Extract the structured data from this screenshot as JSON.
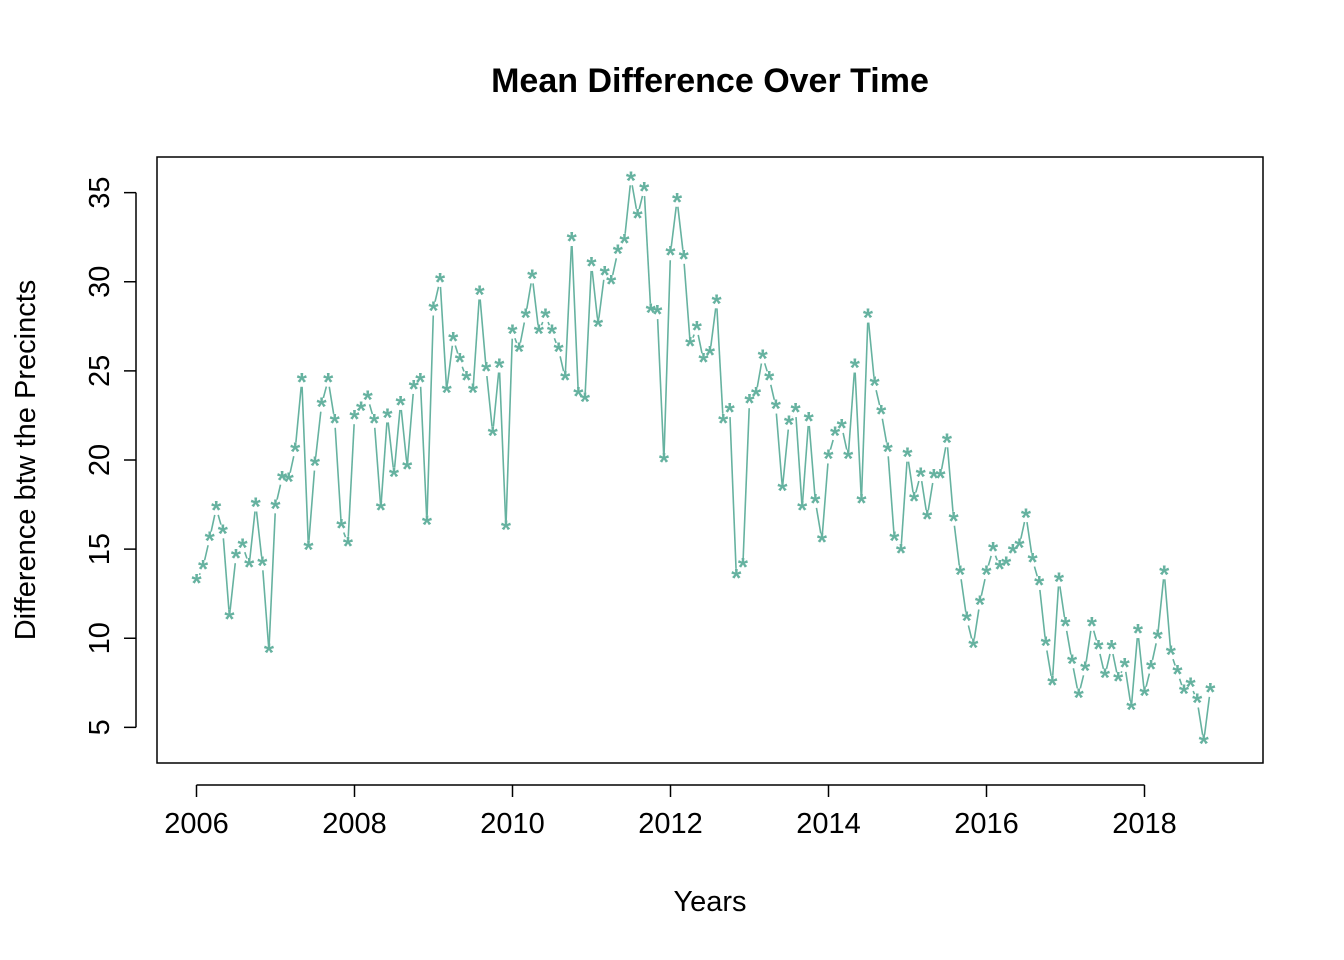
{
  "chart_data": {
    "type": "line",
    "title": "Mean Difference Over Time",
    "xlabel": "Years",
    "ylabel": "Difference btw the Precincts",
    "xlim": [
      2005.5,
      2019.5
    ],
    "ylim": [
      3,
      37
    ],
    "x_ticks": [
      2006,
      2008,
      2010,
      2012,
      2014,
      2016,
      2018
    ],
    "y_ticks": [
      5,
      10,
      15,
      20,
      25,
      30,
      35
    ],
    "x_tick_labels": [
      "2006",
      "2008",
      "2010",
      "2012",
      "2014",
      "2016",
      "2018"
    ],
    "y_tick_labels": [
      "5",
      "10",
      "15",
      "20",
      "25",
      "30",
      "35"
    ],
    "grid": false,
    "legend": "none",
    "series_color": "#66B2A0",
    "marker": "*",
    "x_start": 2006,
    "x_step": 0.08333,
    "series": [
      {
        "values": [
          13.2,
          14.0,
          15.6,
          17.3,
          16.0,
          11.2,
          14.6,
          15.2,
          14.1,
          17.5,
          14.2,
          9.3,
          17.4,
          19.0,
          18.9,
          20.6,
          24.5,
          15.1,
          19.8,
          23.1,
          24.5,
          22.2,
          16.3,
          15.3,
          22.4,
          22.9,
          23.5,
          22.2,
          17.3,
          22.5,
          19.2,
          23.2,
          19.6,
          24.1,
          24.5,
          16.5,
          28.5,
          30.1,
          23.9,
          26.8,
          25.6,
          24.6,
          23.9,
          29.4,
          25.1,
          21.5,
          25.3,
          16.2,
          27.2,
          26.2,
          28.1,
          30.3,
          27.2,
          28.1,
          27.2,
          26.2,
          24.6,
          32.4,
          23.7,
          23.4,
          31.0,
          27.6,
          30.5,
          30.0,
          31.7,
          32.3,
          35.8,
          33.7,
          35.2,
          28.4,
          28.3,
          20.0,
          31.6,
          34.6,
          31.4,
          26.5,
          27.4,
          25.6,
          26.0,
          28.9,
          22.2,
          22.8,
          13.5,
          14.1,
          23.3,
          23.7,
          25.8,
          24.6,
          23.0,
          18.4,
          22.1,
          22.8,
          17.3,
          22.3,
          17.7,
          15.5,
          20.2,
          21.5,
          21.9,
          20.2,
          25.3,
          17.7,
          28.1,
          24.3,
          22.7,
          20.6,
          15.6,
          14.9,
          20.3,
          17.8,
          19.2,
          16.8,
          19.1,
          19.1,
          21.1,
          16.7,
          13.7,
          11.1,
          9.6,
          12.0,
          13.7,
          15.0,
          14.0,
          14.2,
          14.9,
          15.2,
          16.9,
          14.4,
          13.1,
          9.7,
          7.5,
          13.3,
          10.8,
          8.7,
          6.8,
          8.3,
          10.8,
          9.5,
          7.9,
          9.5,
          7.7,
          8.5,
          6.1,
          10.4,
          6.9,
          8.4,
          10.1,
          13.7,
          9.2,
          8.1,
          7.0,
          7.4,
          6.5,
          4.2,
          7.1
        ]
      }
    ]
  }
}
